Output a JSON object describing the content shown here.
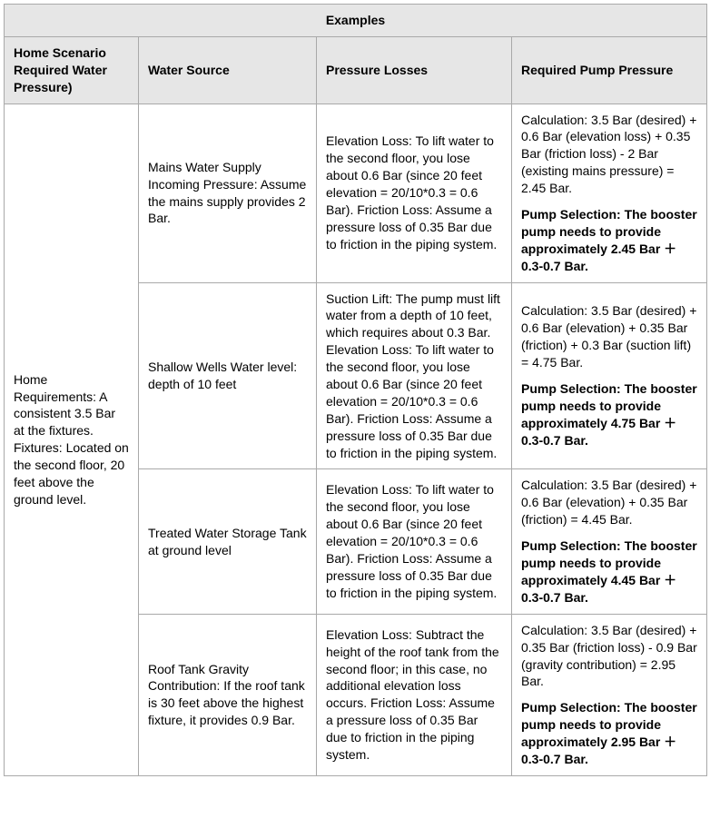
{
  "title": "Examples",
  "columns": {
    "c1": "Home Scenario Required Water Pressure)",
    "c2": "Water Source",
    "c3": "Pressure Losses",
    "c4": "Required Pump Pressure"
  },
  "scenario": "Home Requirements: A consistent 3.5 Bar at the fixtures. Fixtures: Located on the second floor, 20 feet above the ground level.",
  "rows": [
    {
      "source": "Mains Water Supply Incoming Pressure: Assume the mains supply provides 2 Bar.",
      "losses": "Elevation Loss: To lift water to the second floor, you lose about 0.6 Bar (since 20 feet elevation = 20/10*0.3 = 0.6 Bar).\nFriction Loss: Assume a pressure loss of 0.35 Bar due to friction in the piping system.",
      "calc": "Calculation: 3.5 Bar (desired) + 0.6 Bar (elevation loss) + 0.35 Bar (friction loss) - 2 Bar (existing mains pressure) = 2.45 Bar.",
      "sel": "Pump Selection: The booster pump needs to provide approximately 2.45 Bar ＋ 0.3-0.7 Bar."
    },
    {
      "source": "Shallow Wells Water level: depth of 10 feet",
      "losses": "Suction Lift: The pump must lift water from a depth of 10 feet, which requires about 0.3 Bar.\nElevation Loss: To lift water to the second floor, you lose about 0.6 Bar (since 20 feet elevation = 20/10*0.3 = 0.6 Bar).\nFriction Loss: Assume a pressure loss of 0.35 Bar due to friction in the piping system.",
      "calc": "Calculation: 3.5 Bar (desired) + 0.6 Bar (elevation) + 0.35 Bar (friction) + 0.3 Bar (suction lift) = 4.75 Bar.",
      "sel": "Pump Selection: The booster pump needs to provide approximately 4.75 Bar ＋ 0.3-0.7 Bar."
    },
    {
      "source": "Treated Water Storage Tank at ground level",
      "losses": "Elevation Loss: To lift water to the second floor, you lose about 0.6 Bar (since 20 feet elevation = 20/10*0.3 = 0.6 Bar).\nFriction Loss: Assume a pressure loss of 0.35 Bar due to friction in the piping system.",
      "calc": "Calculation: 3.5 Bar (desired) + 0.6 Bar (elevation) + 0.35 Bar (friction) = 4.45 Bar.",
      "sel": "Pump Selection: The booster pump needs to provide approximately 4.45 Bar ＋ 0.3-0.7 Bar."
    },
    {
      "source": "Roof Tank Gravity Contribution: If the roof tank is 30 feet above the highest fixture, it provides 0.9 Bar.",
      "losses": "Elevation Loss: Subtract the height of the roof tank from the second floor; in this case, no additional elevation loss occurs.\nFriction Loss: Assume a pressure loss of 0.35 Bar due to friction in the piping system.",
      "calc": "Calculation: 3.5 Bar (desired) + 0.35 Bar (friction loss) - 0.9 Bar (gravity contribution) = 2.95 Bar.",
      "sel": "Pump Selection: The booster pump needs to provide approximately 2.95 Bar ＋ 0.3-0.7 Bar."
    }
  ]
}
